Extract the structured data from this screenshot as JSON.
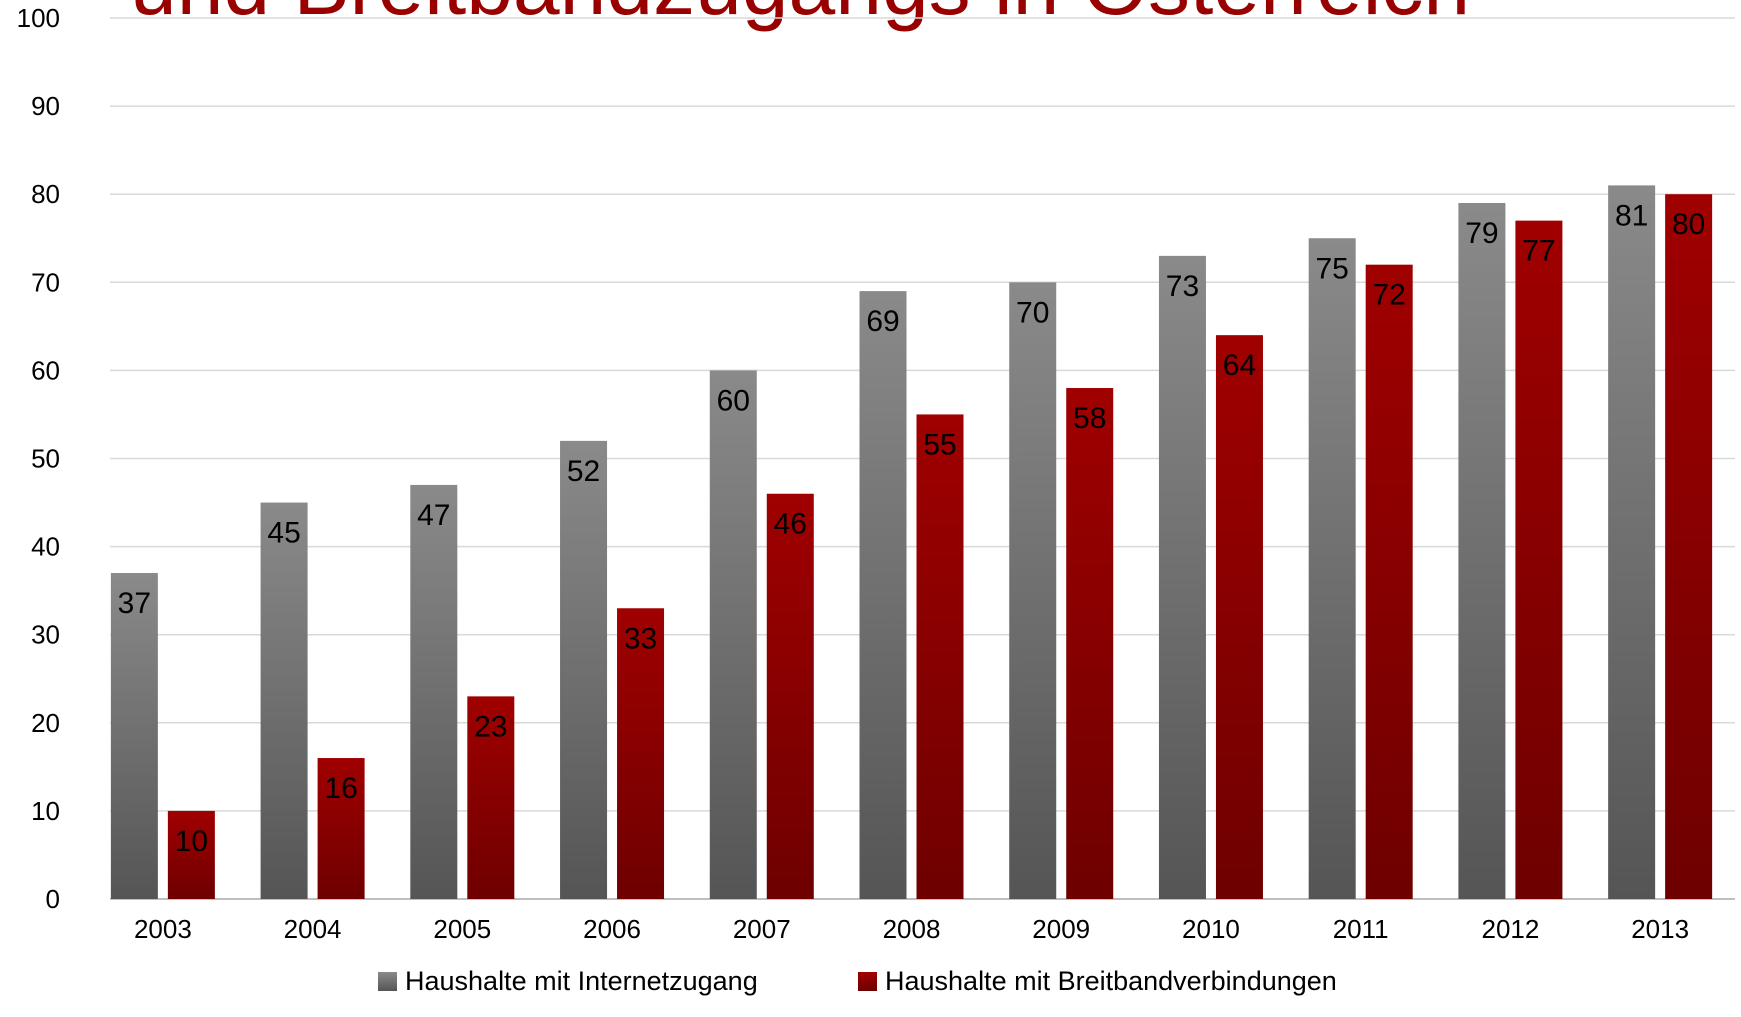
{
  "title_partial": "und Breitbandzugangs in Österreich",
  "chart_data": {
    "type": "bar",
    "categories": [
      "2003",
      "2004",
      "2005",
      "2006",
      "2007",
      "2008",
      "2009",
      "2010",
      "2011",
      "2012",
      "2013"
    ],
    "series": [
      {
        "name": "Haushalte mit Internetzugang",
        "color": "#7a7a7a",
        "values": [
          37,
          45,
          47,
          52,
          60,
          69,
          70,
          73,
          75,
          79,
          81
        ]
      },
      {
        "name": "Haushalte mit Breitbandverbindungen",
        "color": "#990000",
        "values": [
          10,
          16,
          23,
          33,
          46,
          55,
          58,
          64,
          72,
          77,
          80
        ]
      }
    ],
    "ylim": [
      0,
      100
    ],
    "yticks": [
      0,
      10,
      20,
      30,
      40,
      50,
      60,
      70,
      80,
      90,
      100
    ],
    "grid": true,
    "legend_position": "bottom",
    "data_labels": true
  }
}
